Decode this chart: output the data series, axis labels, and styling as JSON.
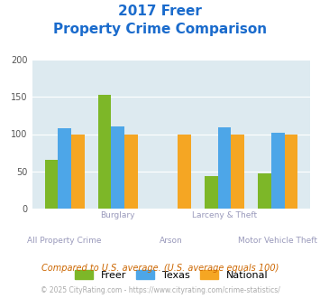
{
  "title_line1": "2017 Freer",
  "title_line2": "Property Crime Comparison",
  "categories": [
    "All Property Crime",
    "Burglary",
    "Arson",
    "Larceny & Theft",
    "Motor Vehicle Theft"
  ],
  "freer": [
    65,
    153,
    0,
    44,
    47
  ],
  "texas": [
    108,
    110,
    0,
    109,
    102
  ],
  "national": [
    100,
    100,
    100,
    100,
    100
  ],
  "color_freer": "#7db728",
  "color_texas": "#4da6e8",
  "color_national": "#f5a623",
  "ylim": [
    0,
    200
  ],
  "yticks": [
    0,
    50,
    100,
    150,
    200
  ],
  "bg_color": "#ddeaf0",
  "title_color": "#1a6bcc",
  "xlabel_color": "#9999bb",
  "legend_labels": [
    "Freer",
    "Texas",
    "National"
  ],
  "footnote1": "Compared to U.S. average. (U.S. average equals 100)",
  "footnote2": "© 2025 CityRating.com - https://www.cityrating.com/crime-statistics/",
  "footnote1_color": "#cc6600",
  "footnote2_color": "#aaaaaa",
  "bar_width": 0.25
}
